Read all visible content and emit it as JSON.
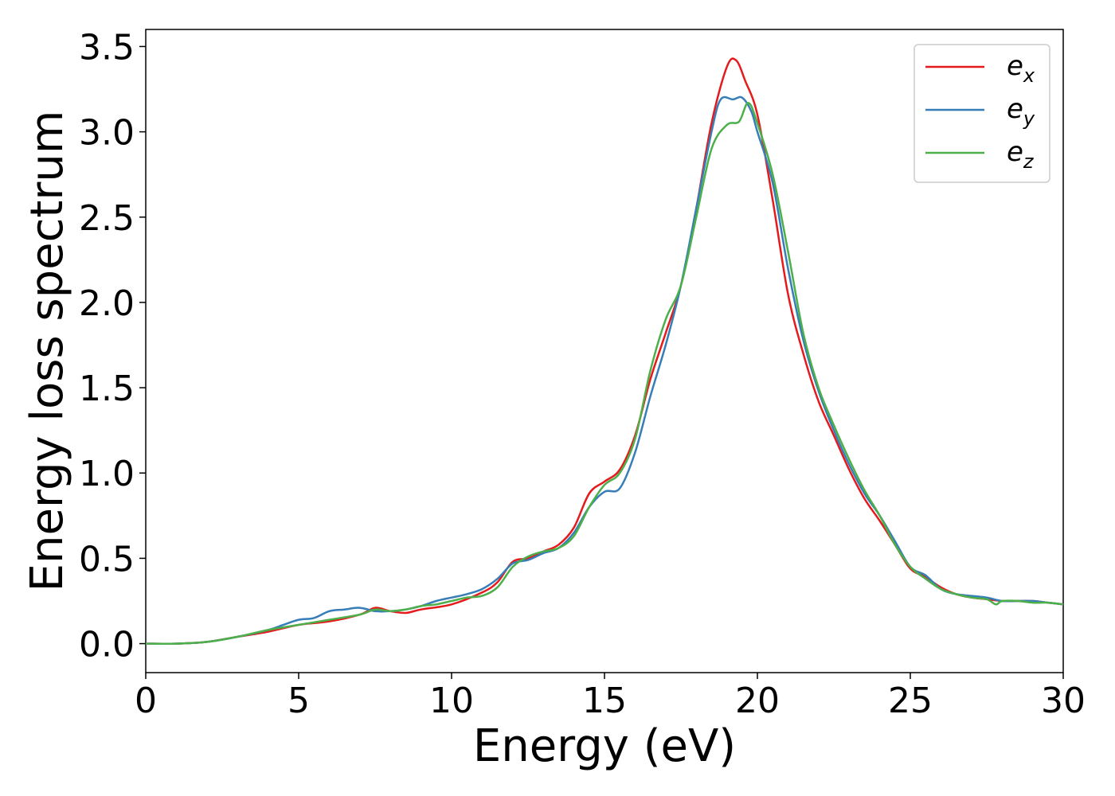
{
  "chart_data": {
    "type": "line",
    "title": "",
    "xlabel": "Energy (eV)",
    "ylabel": "Energy loss spectrum",
    "xlim": [
      0,
      30
    ],
    "ylim": [
      -0.17,
      3.6
    ],
    "xticks": [
      0,
      5,
      10,
      15,
      20,
      25,
      30
    ],
    "yticks": [
      0.0,
      0.5,
      1.0,
      1.5,
      2.0,
      2.5,
      3.0,
      3.5
    ],
    "xtick_labels": [
      "0",
      "5",
      "10",
      "15",
      "20",
      "25",
      "30"
    ],
    "ytick_labels": [
      "0.0",
      "0.5",
      "1.0",
      "1.5",
      "2.0",
      "2.5",
      "3.0",
      "3.5"
    ],
    "grid": false,
    "legend_position": "top-right",
    "series": [
      {
        "name": "e_x",
        "label_main": "e",
        "label_sub": "x",
        "color": "#e41a1c",
        "x": [
          0,
          1,
          2,
          3,
          4,
          5,
          6,
          7,
          7.5,
          8,
          8.5,
          9,
          10,
          11,
          11.5,
          12,
          12.5,
          13,
          13.5,
          14,
          14.5,
          15,
          15.5,
          16,
          16.5,
          17,
          17.5,
          18,
          18.5,
          19,
          19.3,
          19.6,
          20,
          20.5,
          21,
          21.5,
          22,
          22.5,
          23,
          23.5,
          24,
          24.5,
          25,
          25.5,
          26,
          26.5,
          27,
          27.5,
          28,
          28.5,
          29,
          29.5,
          30
        ],
        "y": [
          0,
          0,
          0.01,
          0.04,
          0.07,
          0.11,
          0.13,
          0.17,
          0.21,
          0.19,
          0.18,
          0.2,
          0.23,
          0.3,
          0.36,
          0.48,
          0.5,
          0.54,
          0.58,
          0.68,
          0.88,
          0.95,
          1.02,
          1.22,
          1.55,
          1.82,
          2.1,
          2.55,
          3.05,
          3.38,
          3.42,
          3.3,
          3.1,
          2.6,
          2.05,
          1.7,
          1.42,
          1.22,
          1.02,
          0.85,
          0.72,
          0.58,
          0.44,
          0.39,
          0.33,
          0.29,
          0.27,
          0.26,
          0.25,
          0.25,
          0.25,
          0.24,
          0.23
        ]
      },
      {
        "name": "e_y",
        "label_main": "e",
        "label_sub": "y",
        "color": "#377eb8",
        "x": [
          0,
          1,
          2,
          3,
          4,
          4.5,
          5,
          5.5,
          6,
          6.5,
          7,
          7.5,
          8,
          8.5,
          9,
          9.5,
          10,
          10.5,
          11,
          11.5,
          12,
          12.5,
          13,
          13.5,
          14,
          14.5,
          15,
          15.5,
          16,
          16.5,
          17,
          17.5,
          18,
          18.5,
          18.8,
          19.2,
          19.5,
          19.8,
          20,
          20.5,
          21,
          21.5,
          22,
          22.5,
          23,
          23.5,
          24,
          24.5,
          25,
          25.5,
          26,
          26.5,
          27,
          27.5,
          28,
          28.5,
          29,
          29.5,
          30
        ],
        "y": [
          0,
          0,
          0.01,
          0.04,
          0.08,
          0.11,
          0.14,
          0.15,
          0.19,
          0.2,
          0.21,
          0.19,
          0.19,
          0.2,
          0.22,
          0.25,
          0.27,
          0.29,
          0.32,
          0.38,
          0.47,
          0.49,
          0.53,
          0.56,
          0.65,
          0.8,
          0.89,
          0.91,
          1.12,
          1.45,
          1.75,
          2.1,
          2.55,
          3.0,
          3.19,
          3.19,
          3.2,
          3.12,
          3.0,
          2.7,
          2.2,
          1.78,
          1.48,
          1.25,
          1.05,
          0.88,
          0.75,
          0.6,
          0.45,
          0.4,
          0.32,
          0.29,
          0.28,
          0.27,
          0.25,
          0.25,
          0.25,
          0.24,
          0.23
        ]
      },
      {
        "name": "e_z",
        "label_main": "e",
        "label_sub": "z",
        "color": "#4daf4a",
        "x": [
          0,
          1,
          2,
          3,
          4,
          5,
          6,
          7,
          7.5,
          8,
          8.5,
          9,
          9.5,
          10,
          10.5,
          11,
          11.5,
          12,
          12.5,
          13,
          13.5,
          14,
          14.5,
          15,
          15.5,
          16,
          16.5,
          17,
          17.5,
          18,
          18.5,
          19,
          19.4,
          19.7,
          20,
          20.5,
          21,
          21.5,
          22,
          22.5,
          23,
          23.5,
          24,
          24.5,
          25,
          25.5,
          26,
          26.5,
          27,
          27.5,
          27.8,
          28,
          28.5,
          29,
          29.5,
          30
        ],
        "y": [
          0,
          0,
          0.01,
          0.04,
          0.08,
          0.11,
          0.14,
          0.17,
          0.2,
          0.19,
          0.2,
          0.22,
          0.23,
          0.25,
          0.27,
          0.28,
          0.33,
          0.45,
          0.51,
          0.54,
          0.56,
          0.63,
          0.8,
          0.93,
          1.0,
          1.2,
          1.6,
          1.9,
          2.1,
          2.5,
          2.9,
          3.04,
          3.06,
          3.17,
          3.05,
          2.75,
          2.3,
          1.82,
          1.5,
          1.28,
          1.08,
          0.9,
          0.75,
          0.58,
          0.45,
          0.38,
          0.32,
          0.29,
          0.27,
          0.26,
          0.23,
          0.25,
          0.25,
          0.24,
          0.24,
          0.23
        ]
      }
    ]
  }
}
